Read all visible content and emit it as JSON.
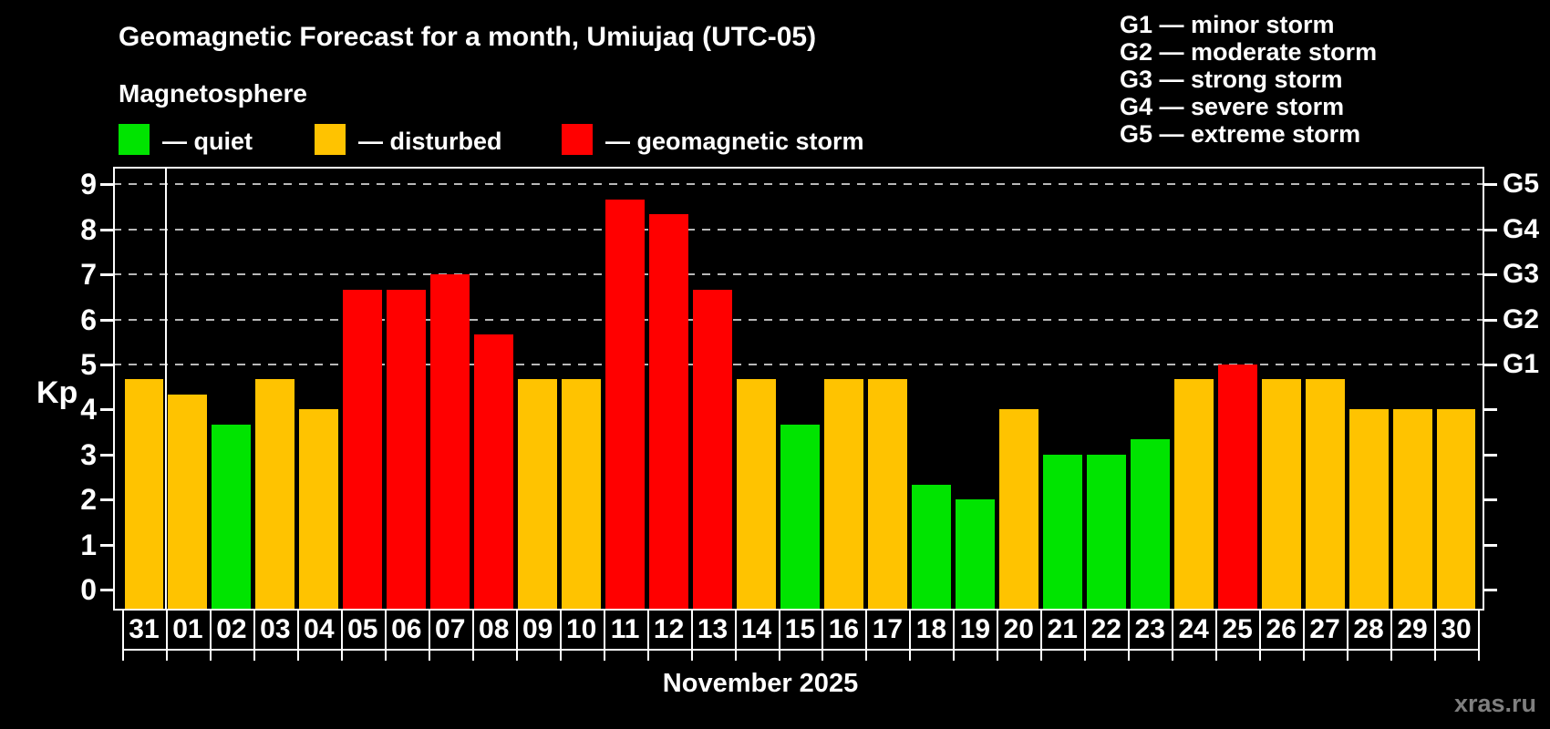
{
  "header": {
    "title": "Geomagnetic Forecast for a month, Umiujaq (UTC-05)",
    "subtitle": "Magnetosphere"
  },
  "status_legend": {
    "items": [
      {
        "id": "quiet",
        "label": "— quiet"
      },
      {
        "id": "disturbed",
        "label": "— disturbed"
      },
      {
        "id": "storm",
        "label": "— geomagnetic storm"
      }
    ]
  },
  "g_scale_legend": {
    "lines": [
      "G1 — minor storm",
      "G2 — moderate storm",
      "G3 — strong storm",
      "G4 — severe storm",
      "G5 — extreme storm"
    ]
  },
  "y_axis": {
    "label": "Kp"
  },
  "x_axis": {
    "month_label": "November 2025"
  },
  "watermark": "xras.ru",
  "colors": {
    "quiet": "#00e400",
    "disturbed": "#ffc300",
    "storm": "#ff0000",
    "background": "#000000",
    "grid": "#b8b8b8",
    "axis": "#ffffff",
    "watermark": "#7f7f7f"
  },
  "chart_data": {
    "type": "bar",
    "title": "Geomagnetic Forecast for a month, Umiujaq (UTC-05)",
    "xlabel": "November 2025",
    "ylabel": "Kp",
    "ylim": [
      0,
      9
    ],
    "y_ticks": [
      0,
      1,
      2,
      3,
      4,
      5,
      6,
      7,
      8,
      9
    ],
    "gridline_levels": [
      5,
      6,
      7,
      8,
      9
    ],
    "right_axis_labels": [
      {
        "kp": 5,
        "label": "G1"
      },
      {
        "kp": 6,
        "label": "G2"
      },
      {
        "kp": 7,
        "label": "G3"
      },
      {
        "kp": 8,
        "label": "G4"
      },
      {
        "kp": 9,
        "label": "G5"
      }
    ],
    "categories": [
      "31",
      "01",
      "02",
      "03",
      "04",
      "05",
      "06",
      "07",
      "08",
      "09",
      "10",
      "11",
      "12",
      "13",
      "14",
      "15",
      "16",
      "17",
      "18",
      "19",
      "20",
      "21",
      "22",
      "23",
      "24",
      "25",
      "26",
      "27",
      "28",
      "29",
      "30"
    ],
    "values": [
      4.67,
      4.33,
      3.67,
      4.67,
      4.0,
      6.67,
      6.67,
      7.0,
      5.67,
      4.67,
      4.67,
      8.67,
      8.33,
      6.67,
      4.67,
      3.67,
      4.67,
      4.67,
      2.33,
      2.0,
      4.0,
      3.0,
      3.0,
      3.33,
      4.67,
      5.0,
      4.67,
      4.67,
      4.0,
      4.0,
      4.0
    ],
    "statuses": [
      "disturbed",
      "disturbed",
      "quiet",
      "disturbed",
      "disturbed",
      "storm",
      "storm",
      "storm",
      "storm",
      "disturbed",
      "disturbed",
      "storm",
      "storm",
      "storm",
      "disturbed",
      "quiet",
      "disturbed",
      "disturbed",
      "quiet",
      "quiet",
      "disturbed",
      "quiet",
      "quiet",
      "quiet",
      "disturbed",
      "storm",
      "disturbed",
      "disturbed",
      "disturbed",
      "disturbed",
      "disturbed"
    ],
    "month_separator_after_index": 0,
    "legend_position": "top-left",
    "grid": true
  }
}
